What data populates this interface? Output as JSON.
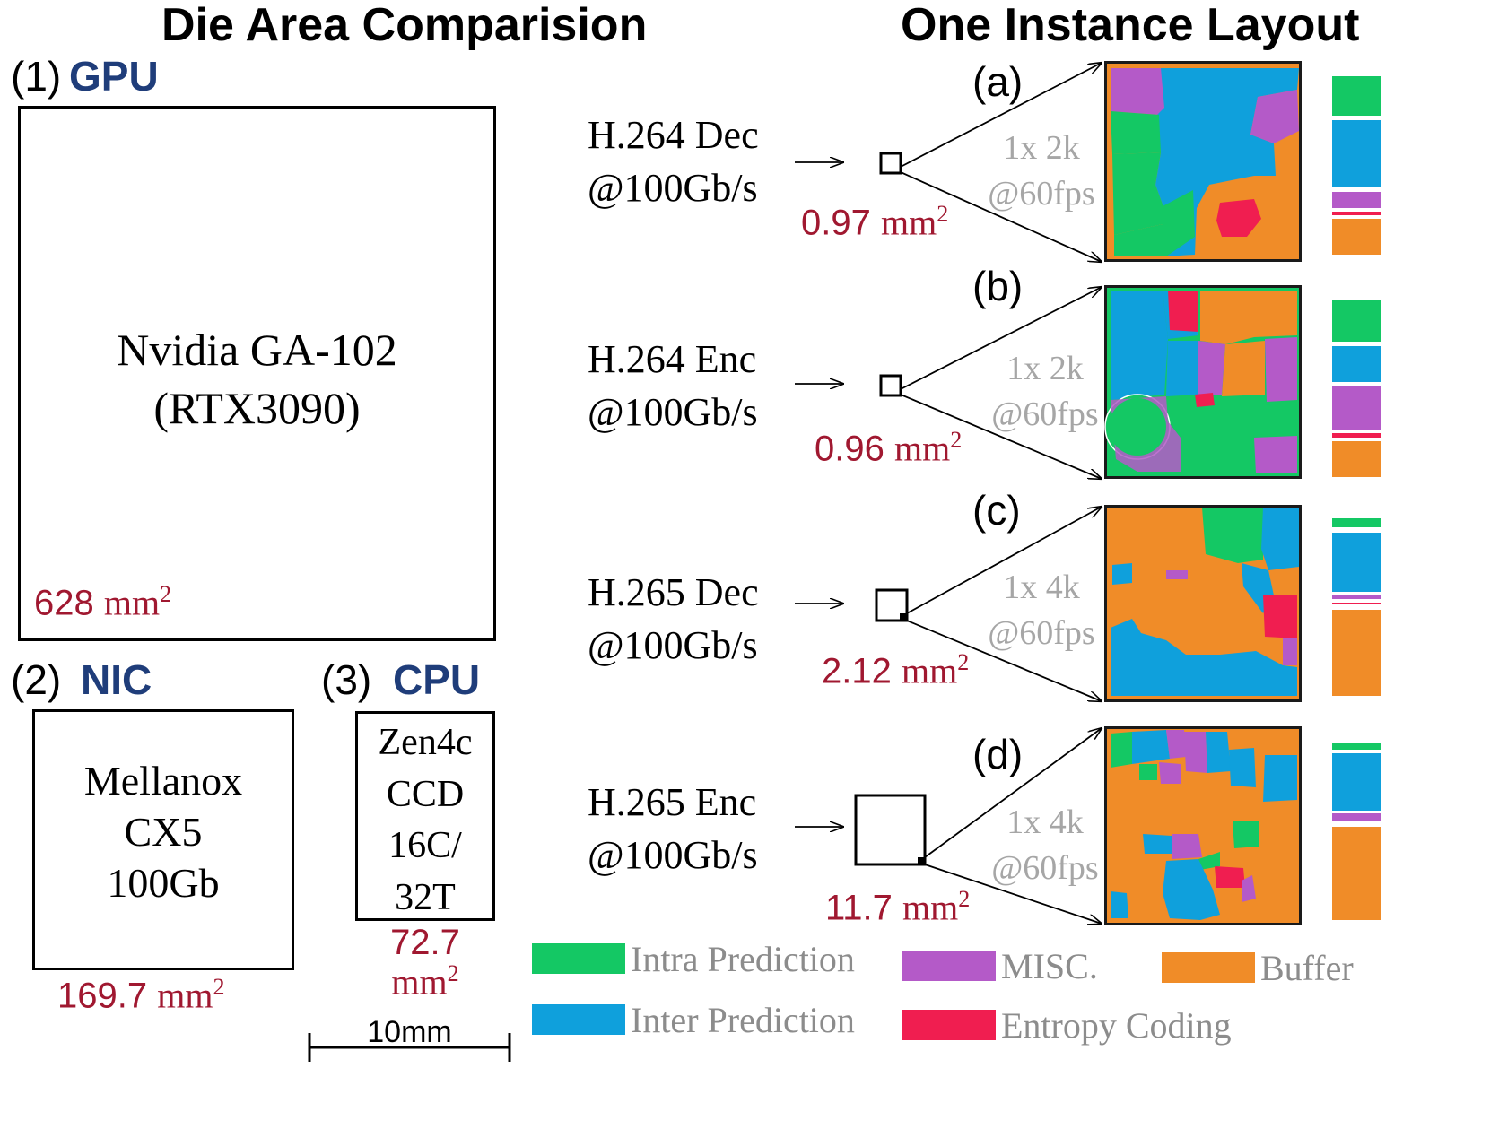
{
  "headings": {
    "left": "Die Area Comparision",
    "right": "One Instance Layout"
  },
  "colors": {
    "intra_prediction": "#14c864",
    "inter_prediction": "#0fa0dc",
    "misc": "#b45ac8",
    "buffer": "#f08c28",
    "entropy_coding": "#f01e50",
    "area_label": "#a01830",
    "category_label": "#1f3d7a"
  },
  "gpu": {
    "index": "(1)",
    "category": "GPU",
    "name_line1": "Nvidia GA-102",
    "name_line2": "(RTX3090)",
    "area_value": "628",
    "area_unit": "mm",
    "area_exp": "2"
  },
  "nic": {
    "index": "(2)",
    "category": "NIC",
    "name_line1": "Mellanox",
    "name_line2": "CX5",
    "name_line3": "100Gb",
    "area_value": "169.7",
    "area_unit": "mm",
    "area_exp": "2"
  },
  "cpu": {
    "index": "(3)",
    "category": "CPU",
    "name_line1": "Zen4c",
    "name_line2": "CCD",
    "name_line3": "16C/",
    "name_line4": "32T",
    "area_value": "72.7",
    "area_unit": "mm",
    "area_exp": "2"
  },
  "scale_bar": {
    "label": "10mm"
  },
  "instances": [
    {
      "panel": "(a)",
      "codec_line1": "H.264 Dec",
      "codec_line2": "@100Gb/s",
      "area_value": "0.97",
      "area_unit": "mm",
      "area_exp": "2",
      "spec_line1": "1x 2k",
      "spec_line2": "@60fps",
      "bar_segments": [
        "intra_prediction",
        "inter_prediction",
        "misc",
        "entropy_coding",
        "buffer"
      ]
    },
    {
      "panel": "(b)",
      "codec_line1": "H.264 Enc",
      "codec_line2": "@100Gb/s",
      "area_value": "0.96",
      "area_unit": "mm",
      "area_exp": "2",
      "spec_line1": "1x 2k",
      "spec_line2": "@60fps",
      "bar_segments": [
        "intra_prediction",
        "inter_prediction",
        "misc",
        "entropy_coding",
        "buffer"
      ]
    },
    {
      "panel": "(c)",
      "codec_line1": "H.265 Dec",
      "codec_line2": "@100Gb/s",
      "area_value": "2.12",
      "area_unit": "mm",
      "area_exp": "2",
      "spec_line1": "1x 4k",
      "spec_line2": "@60fps",
      "bar_segments": [
        "intra_prediction",
        "inter_prediction",
        "misc",
        "entropy_coding",
        "buffer"
      ]
    },
    {
      "panel": "(d)",
      "codec_line1": "H.265 Enc",
      "codec_line2": "@100Gb/s",
      "area_value": "11.7",
      "area_unit": "mm",
      "area_exp": "2",
      "spec_line1": "1x 4k",
      "spec_line2": "@60fps",
      "bar_segments": [
        "intra_prediction",
        "inter_prediction",
        "misc",
        "entropy_coding",
        "buffer"
      ]
    }
  ],
  "legend": {
    "intra": "Intra Prediction",
    "inter": "Inter Prediction",
    "misc": "MISC.",
    "entropy": "Entropy Coding",
    "buffer": "Buffer"
  }
}
